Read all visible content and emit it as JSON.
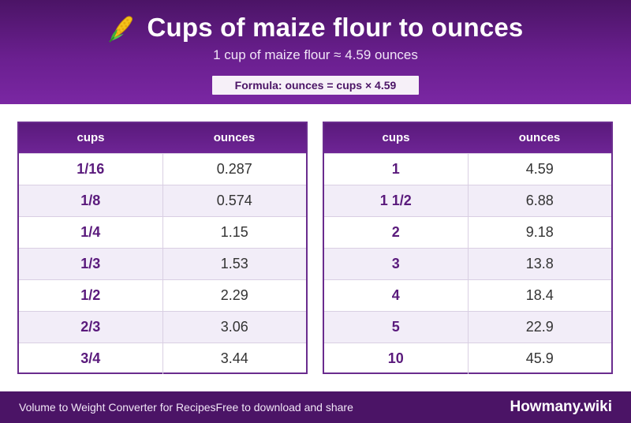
{
  "header": {
    "title": "Cups of maize flour to ounces",
    "icon": "corn-icon",
    "subtitle": "1 cup of maize flour ≈ 4.59 ounces",
    "formula": "Formula: ounces = cups × 4.59"
  },
  "tables": [
    {
      "headers": [
        "cups",
        "ounces"
      ],
      "rows": [
        [
          "1/16",
          "0.287"
        ],
        [
          "1/8",
          "0.574"
        ],
        [
          "1/4",
          "1.15"
        ],
        [
          "1/3",
          "1.53"
        ],
        [
          "1/2",
          "2.29"
        ],
        [
          "2/3",
          "3.06"
        ],
        [
          "3/4",
          "3.44"
        ]
      ]
    },
    {
      "headers": [
        "cups",
        "ounces"
      ],
      "rows": [
        [
          "1",
          "4.59"
        ],
        [
          "1 1/2",
          "6.88"
        ],
        [
          "2",
          "9.18"
        ],
        [
          "3",
          "13.8"
        ],
        [
          "4",
          "18.4"
        ],
        [
          "5",
          "22.9"
        ],
        [
          "10",
          "45.9"
        ]
      ]
    }
  ],
  "footer": {
    "left_text": "Volume to Weight Converter for Recipes",
    "left_sub": "Free to download and share",
    "brand": "Howmany.wiki"
  },
  "colors": {
    "header_dark": "#4b1466",
    "header_accent": "#7a27a3",
    "table_border": "#6a2c8e",
    "row_alt": "#f2edf8",
    "cups_text": "#5a1a7c"
  }
}
